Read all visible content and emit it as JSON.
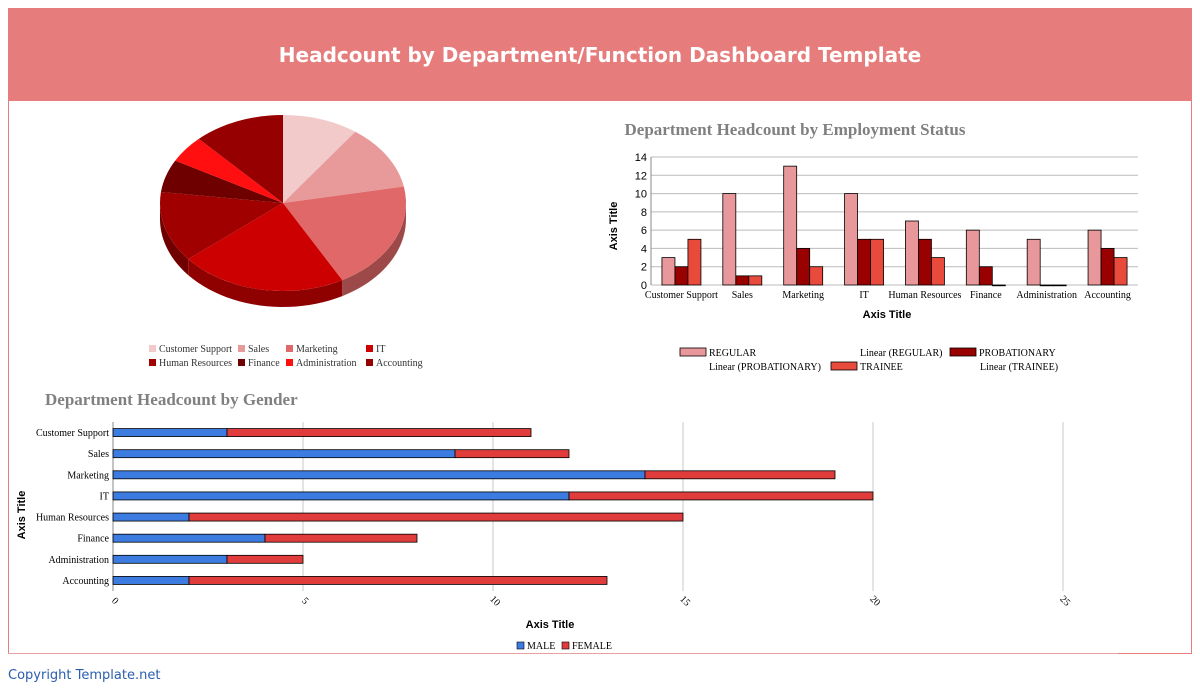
{
  "page": {
    "title": "Headcount by Department/Function Dashboard Template",
    "footer": "Copyright Template.net"
  },
  "colors": {
    "banner": "#e77c7c",
    "regular": "#e8989a",
    "probationary": "#990000",
    "trainee": "#e84a3c",
    "male": "#3c7be0",
    "female": "#e03c3c"
  },
  "chart_data": [
    {
      "id": "pie",
      "type": "pie",
      "title": "",
      "categories": [
        "Customer Support",
        "Sales",
        "Marketing",
        "IT",
        "Human Resources",
        "Finance",
        "Administration",
        "Accounting"
      ],
      "values": [
        10,
        12,
        20,
        22,
        13,
        6,
        5,
        12
      ],
      "colors": [
        "#f2caca",
        "#e89a9a",
        "#e06868",
        "#cc0000",
        "#a00000",
        "#6e0000",
        "#ff0f0f",
        "#960000"
      ],
      "legend_position": "bottom"
    },
    {
      "id": "status",
      "type": "bar",
      "title": "Department Headcount by Employment Status",
      "categories": [
        "Customer Support",
        "Sales",
        "Marketing",
        "IT",
        "Human Resources",
        "Finance",
        "Administration",
        "Accounting"
      ],
      "series": [
        {
          "name": "REGULAR",
          "values": [
            3,
            10,
            13,
            10,
            7,
            6,
            5,
            6
          ]
        },
        {
          "name": "PROBATIONARY",
          "values": [
            2,
            1,
            4,
            5,
            5,
            2,
            0,
            4
          ]
        },
        {
          "name": "TRAINEE",
          "values": [
            5,
            1,
            2,
            5,
            3,
            0,
            0,
            3
          ]
        }
      ],
      "legend": [
        "REGULAR",
        "Linear (REGULAR)",
        "PROBATIONARY",
        "Linear (PROBATIONARY)",
        "TRAINEE",
        "Linear (TRAINEE)"
      ],
      "xlabel": "Axis Title",
      "ylabel": "Axis Title",
      "ylim": [
        0,
        14
      ],
      "yticks": [
        "0",
        "2",
        "4",
        "6",
        "8",
        "10",
        "12",
        "14"
      ],
      "grid": true,
      "legend_position": "bottom"
    },
    {
      "id": "gender",
      "type": "bar",
      "orientation": "horizontal",
      "stacked": true,
      "title": "Department Headcount by Gender",
      "categories": [
        "Customer Support",
        "Sales",
        "Marketing",
        "IT",
        "Human Resources",
        "Finance",
        "Administration",
        "Accounting"
      ],
      "series": [
        {
          "name": "MALE",
          "values": [
            3,
            9,
            14,
            12,
            2,
            4,
            3,
            2
          ]
        },
        {
          "name": "FEMALE",
          "values": [
            8,
            3,
            5,
            8,
            13,
            4,
            2,
            11
          ]
        }
      ],
      "xlabel": "Axis Title",
      "ylabel": "Axis Title",
      "xlim": [
        0,
        25
      ],
      "xticks": [
        "0",
        "5",
        "10",
        "15",
        "20",
        "25"
      ],
      "grid": true,
      "legend_position": "bottom"
    }
  ]
}
